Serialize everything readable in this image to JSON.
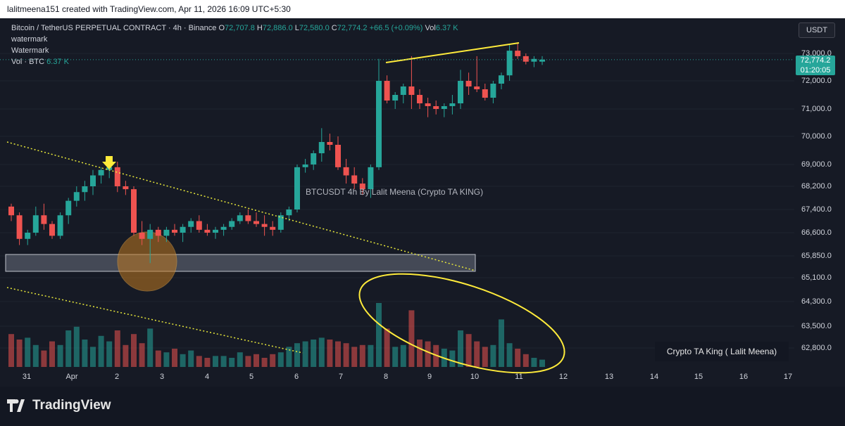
{
  "topbar": {
    "text": "lalitmeena151 created with TradingView.com, Apr 11, 2026 16:09 UTC+5:30"
  },
  "legend": {
    "symbol": "Bitcoin / TetherUS PERPETUAL CONTRACT · 4h · Binance",
    "o_label": "O",
    "o": "72,707.8",
    "h_label": "H",
    "h": "72,886.0",
    "l_label": "L",
    "l": "72,580.0",
    "c_label": "C",
    "c": "72,774.2",
    "change": "+66.5 (+0.09%)",
    "vol_label": "Vol",
    "vol": "6.37 K",
    "line2": "watermark",
    "line3": "Watermark",
    "line4_label": "Vol · BTC",
    "line4_val": "6.37 K"
  },
  "price_axis": {
    "currency_button": "USDT",
    "current_price": "72,774.2",
    "countdown": "01:20:05",
    "labels": [
      "73,000.0",
      "72,000.0",
      "71,000.0",
      "70,000.0",
      "69,000.0",
      "68,200.0",
      "67,400.0",
      "66,600.0",
      "65,850.0",
      "65,100.0",
      "64,300.0",
      "63,500.0",
      "62,800.0"
    ]
  },
  "time_axis": {
    "labels": [
      "31",
      "Apr",
      "2",
      "3",
      "4",
      "5",
      "6",
      "7",
      "8",
      "9",
      "10",
      "11",
      "12",
      "13",
      "14",
      "15",
      "16",
      "17"
    ]
  },
  "watermark_text": "BTCUSDT 4h   By Lalit Meena (Crypto TA KING)",
  "brand_text": "Crypto TA King ( Lalit Meena)",
  "logo_text": "TradingView",
  "colors": {
    "up": "#26a69a",
    "down": "#ef5350",
    "trendline": "#e8e83a",
    "annotation": "#ffeb3b",
    "circle": "#c07a20"
  },
  "chart_data": {
    "type": "candlestick",
    "title": "Bitcoin / TetherUS PERPETUAL CONTRACT · 4h · Binance",
    "ylim": [
      62500,
      73500
    ],
    "candles": [
      [
        67500,
        67600,
        67000,
        67200,
        18
      ],
      [
        67200,
        67300,
        66200,
        66400,
        15
      ],
      [
        66400,
        66700,
        66200,
        66600,
        16
      ],
      [
        66600,
        67500,
        66500,
        67200,
        12
      ],
      [
        67200,
        67600,
        66700,
        66900,
        9
      ],
      [
        66900,
        67000,
        66400,
        66500,
        14
      ],
      [
        66500,
        67300,
        66400,
        67200,
        12
      ],
      [
        67200,
        67800,
        66900,
        67700,
        20
      ],
      [
        67700,
        68200,
        67500,
        68000,
        22
      ],
      [
        68000,
        68400,
        67700,
        68200,
        15
      ],
      [
        68200,
        68800,
        67900,
        68600,
        11
      ],
      [
        68600,
        68900,
        68300,
        68800,
        17
      ],
      [
        68800,
        69200,
        68500,
        68900,
        14
      ],
      [
        68900,
        69100,
        68000,
        68200,
        20
      ],
      [
        68200,
        68400,
        67900,
        68100,
        12
      ],
      [
        68100,
        68200,
        66500,
        66600,
        18
      ],
      [
        66600,
        67000,
        66200,
        66400,
        13
      ],
      [
        66400,
        66900,
        65600,
        66700,
        21
      ],
      [
        66700,
        66800,
        66300,
        66500,
        9
      ],
      [
        66500,
        66800,
        66300,
        66700,
        8
      ],
      [
        66700,
        66900,
        66500,
        66600,
        10
      ],
      [
        66600,
        66900,
        66300,
        66800,
        7
      ],
      [
        66800,
        67100,
        66600,
        67000,
        9
      ],
      [
        67000,
        67200,
        66600,
        66700,
        6
      ],
      [
        66700,
        66900,
        66500,
        66600,
        5
      ],
      [
        66600,
        66800,
        66400,
        66700,
        6
      ],
      [
        66700,
        66900,
        66500,
        66800,
        6
      ],
      [
        66800,
        67100,
        66700,
        67000,
        5
      ],
      [
        67000,
        67300,
        66900,
        67200,
        8
      ],
      [
        67200,
        67400,
        66900,
        67000,
        6
      ],
      [
        67000,
        67300,
        66800,
        66900,
        7
      ],
      [
        66900,
        67200,
        66500,
        66800,
        5
      ],
      [
        66800,
        67000,
        66500,
        66700,
        7
      ],
      [
        66700,
        67300,
        66600,
        67200,
        8
      ],
      [
        67200,
        67500,
        67000,
        67400,
        11
      ],
      [
        67400,
        69000,
        67300,
        68900,
        13
      ],
      [
        68900,
        69200,
        68700,
        69000,
        14
      ],
      [
        69000,
        69500,
        68800,
        69400,
        15
      ],
      [
        69400,
        70300,
        69100,
        69800,
        16
      ],
      [
        69800,
        70100,
        69500,
        69700,
        15
      ],
      [
        69700,
        70000,
        68800,
        68900,
        14
      ],
      [
        68900,
        69200,
        68300,
        68600,
        13
      ],
      [
        68600,
        68900,
        68100,
        68300,
        11
      ],
      [
        68300,
        68500,
        67900,
        68100,
        12
      ],
      [
        68100,
        69000,
        67800,
        68900,
        12
      ],
      [
        68900,
        72800,
        68800,
        72000,
        35
      ],
      [
        72000,
        72200,
        71200,
        71300,
        21
      ],
      [
        71300,
        71600,
        71000,
        71500,
        11
      ],
      [
        71500,
        71900,
        71200,
        71800,
        12
      ],
      [
        71800,
        72900,
        71000,
        71500,
        31
      ],
      [
        71500,
        71700,
        71000,
        71200,
        15
      ],
      [
        71200,
        71400,
        70700,
        71100,
        14
      ],
      [
        71100,
        71300,
        70800,
        71000,
        12
      ],
      [
        71000,
        71200,
        70700,
        71100,
        10
      ],
      [
        71100,
        71500,
        70800,
        71200,
        9
      ],
      [
        71200,
        72400,
        71000,
        72000,
        20
      ],
      [
        72000,
        72300,
        71500,
        71800,
        18
      ],
      [
        71800,
        72900,
        71600,
        71700,
        14
      ],
      [
        71700,
        71900,
        71300,
        71400,
        11
      ],
      [
        71400,
        72000,
        71200,
        71900,
        12
      ],
      [
        71900,
        72300,
        71700,
        72200,
        26
      ],
      [
        72200,
        73300,
        72000,
        73100,
        13
      ],
      [
        73100,
        73400,
        72800,
        72900,
        10
      ],
      [
        72900,
        73000,
        72600,
        72700,
        7
      ],
      [
        72700,
        72900,
        72500,
        72800,
        5
      ],
      [
        72700,
        72900,
        72580,
        72774,
        4
      ]
    ]
  }
}
